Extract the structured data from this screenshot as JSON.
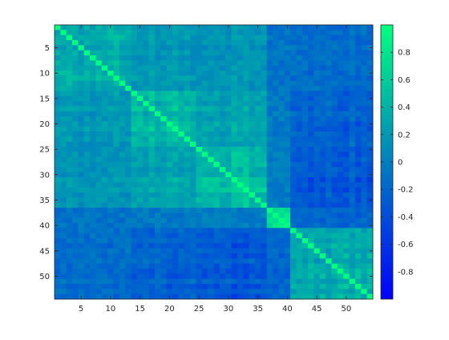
{
  "chart_data": {
    "type": "heatmap",
    "title": "",
    "xlabel": "",
    "ylabel": "",
    "n": 54,
    "xlim": [
      0.5,
      54.5
    ],
    "ylim": [
      0.5,
      54.5
    ],
    "y_direction": "reverse",
    "x_ticks": [
      5,
      10,
      15,
      20,
      25,
      30,
      35,
      40,
      45,
      50
    ],
    "y_ticks": [
      5,
      10,
      15,
      20,
      25,
      30,
      35,
      40,
      45,
      50
    ],
    "x_tick_labels": [
      "5",
      "10",
      "15",
      "20",
      "25",
      "30",
      "35",
      "40",
      "45",
      "50"
    ],
    "y_tick_labels": [
      "5",
      "10",
      "15",
      "20",
      "25",
      "30",
      "35",
      "40",
      "45",
      "50"
    ],
    "colormap": "winter",
    "colormap_low": "#0000ff",
    "colormap_high": "#00ff80",
    "clim": [
      -1,
      1
    ],
    "colorbar": {
      "position": "right",
      "ticks": [
        0.8,
        0.6,
        0.4,
        0.2,
        0,
        -0.2,
        -0.4,
        -0.6,
        -0.8
      ],
      "tick_labels": [
        "0.8",
        "0.6",
        "0.4",
        "0.2",
        "0",
        "-0.2",
        "-0.4",
        "-0.6",
        "-0.8"
      ]
    },
    "block_bounds": [
      1,
      14,
      25,
      37,
      41,
      54
    ],
    "block_values": [
      [
        0.35,
        0.2,
        0.18,
        -0.1,
        -0.15
      ],
      [
        0.2,
        0.45,
        0.3,
        -0.05,
        -0.25
      ],
      [
        0.18,
        0.3,
        0.55,
        -0.02,
        -0.35
      ],
      [
        -0.1,
        -0.05,
        -0.02,
        0.65,
        -0.2
      ],
      [
        -0.15,
        -0.25,
        -0.35,
        -0.2,
        0.35
      ]
    ],
    "diagonal": 1.0
  }
}
